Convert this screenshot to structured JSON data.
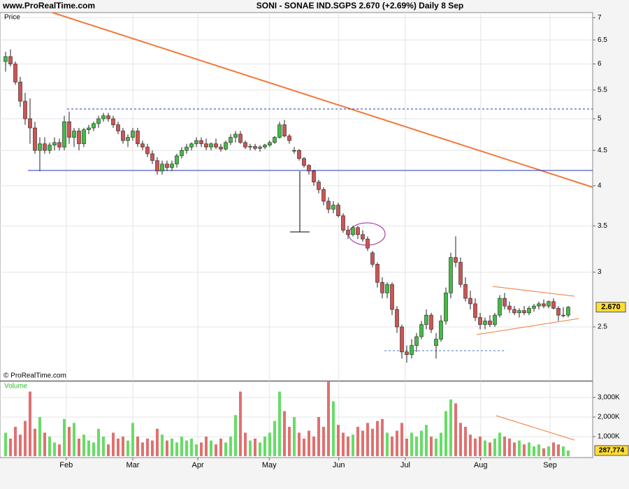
{
  "header": {
    "site": "www.ProRealTime.com",
    "title": "SONI - SONAE IND.SGPS   2.670 (+2.69%)   Daily  8 Sep"
  },
  "chart_data": [
    {
      "type": "candlestick",
      "label": "Price",
      "copyright": "© ProRealTime.com",
      "log_scale": true,
      "grid": true,
      "up_color": "#44bb44",
      "down_color": "#cc5555",
      "last_label": "2.670",
      "xlim": [
        -1.14,
        120
      ],
      "ylim": [
        2.09,
        7.12
      ],
      "yticks": [
        7,
        6.5,
        6,
        5.5,
        5,
        4.5,
        4,
        3.5,
        3,
        2.5
      ],
      "ohlc": [
        [
          6.05,
          6.25,
          5.85,
          6.15
        ],
        [
          6.15,
          6.3,
          5.95,
          6.0
        ],
        [
          6.0,
          6.05,
          5.6,
          5.65
        ],
        [
          5.65,
          5.75,
          5.2,
          5.3
        ],
        [
          5.3,
          5.45,
          4.9,
          5.0
        ],
        [
          5.0,
          5.35,
          4.6,
          4.85
        ],
        [
          4.85,
          4.95,
          4.45,
          4.5
        ],
        [
          4.5,
          4.7,
          4.2,
          4.6
        ],
        [
          4.6,
          4.7,
          4.45,
          4.5
        ],
        [
          4.5,
          4.62,
          4.45,
          4.58
        ],
        [
          4.58,
          4.7,
          4.5,
          4.62
        ],
        [
          4.62,
          4.68,
          4.5,
          4.55
        ],
        [
          4.55,
          5.05,
          4.5,
          4.95
        ],
        [
          4.95,
          5.12,
          4.6,
          4.7
        ],
        [
          4.7,
          4.85,
          4.55,
          4.8
        ],
        [
          4.8,
          4.85,
          4.5,
          4.6
        ],
        [
          4.6,
          4.85,
          4.55,
          4.82
        ],
        [
          4.82,
          4.9,
          4.75,
          4.85
        ],
        [
          4.85,
          4.95,
          4.8,
          4.92
        ],
        [
          4.92,
          5.05,
          4.85,
          5.0
        ],
        [
          5.0,
          5.1,
          4.95,
          5.05
        ],
        [
          5.05,
          5.1,
          4.95,
          5.0
        ],
        [
          5.0,
          5.05,
          4.85,
          4.9
        ],
        [
          4.9,
          4.95,
          4.75,
          4.8
        ],
        [
          4.8,
          4.85,
          4.6,
          4.65
        ],
        [
          4.65,
          4.75,
          4.55,
          4.7
        ],
        [
          4.7,
          4.85,
          4.65,
          4.8
        ],
        [
          4.8,
          4.85,
          4.55,
          4.6
        ],
        [
          4.6,
          4.65,
          4.5,
          4.55
        ],
        [
          4.55,
          4.6,
          4.4,
          4.45
        ],
        [
          4.45,
          4.5,
          4.3,
          4.35
        ],
        [
          4.35,
          4.4,
          4.15,
          4.2
        ],
        [
          4.2,
          4.35,
          4.15,
          4.3
        ],
        [
          4.3,
          4.35,
          4.2,
          4.25
        ],
        [
          4.25,
          4.35,
          4.2,
          4.3
        ],
        [
          4.3,
          4.45,
          4.25,
          4.42
        ],
        [
          4.42,
          4.55,
          4.38,
          4.5
        ],
        [
          4.5,
          4.6,
          4.45,
          4.55
        ],
        [
          4.55,
          4.62,
          4.5,
          4.6
        ],
        [
          4.6,
          4.7,
          4.55,
          4.65
        ],
        [
          4.65,
          4.7,
          4.55,
          4.6
        ],
        [
          4.6,
          4.68,
          4.5,
          4.55
        ],
        [
          4.55,
          4.62,
          4.5,
          4.6
        ],
        [
          4.6,
          4.68,
          4.52,
          4.55
        ],
        [
          4.55,
          4.6,
          4.48,
          4.52
        ],
        [
          4.52,
          4.65,
          4.5,
          4.62
        ],
        [
          4.62,
          4.75,
          4.58,
          4.7
        ],
        [
          4.7,
          4.8,
          4.62,
          4.75
        ],
        [
          4.75,
          4.8,
          4.6,
          4.62
        ],
        [
          4.62,
          4.65,
          4.52,
          4.55
        ],
        [
          4.55,
          4.6,
          4.5,
          4.56
        ],
        [
          4.56,
          4.6,
          4.5,
          4.53
        ],
        [
          4.53,
          4.58,
          4.48,
          4.55
        ],
        [
          4.55,
          4.6,
          4.52,
          4.58
        ],
        [
          4.58,
          4.65,
          4.55,
          4.62
        ],
        [
          4.62,
          4.72,
          4.6,
          4.7
        ],
        [
          4.7,
          4.95,
          4.68,
          4.9
        ],
        [
          4.9,
          4.98,
          4.7,
          4.72
        ],
        [
          4.72,
          4.75,
          4.6,
          4.65
        ],
        [
          4.5,
          4.55,
          4.45,
          4.5
        ],
        [
          4.5,
          4.52,
          4.35,
          4.38
        ],
        [
          4.38,
          4.4,
          4.25,
          4.28
        ],
        [
          4.28,
          4.3,
          4.15,
          4.2
        ],
        [
          4.2,
          4.22,
          4.0,
          4.05
        ],
        [
          4.05,
          4.08,
          3.9,
          3.95
        ],
        [
          3.95,
          3.98,
          3.75,
          3.8
        ],
        [
          3.8,
          3.85,
          3.65,
          3.7
        ],
        [
          3.7,
          3.8,
          3.65,
          3.75
        ],
        [
          3.75,
          3.78,
          3.6,
          3.62
        ],
        [
          3.62,
          3.65,
          3.42,
          3.45
        ],
        [
          3.45,
          3.5,
          3.35,
          3.4
        ],
        [
          3.4,
          3.5,
          3.38,
          3.48
        ],
        [
          3.48,
          3.5,
          3.35,
          3.4
        ],
        [
          3.4,
          3.45,
          3.32,
          3.35
        ],
        [
          3.35,
          3.38,
          3.22,
          3.25
        ],
        [
          3.2,
          3.22,
          3.05,
          3.08
        ],
        [
          3.08,
          3.1,
          2.85,
          2.9
        ],
        [
          2.9,
          2.95,
          2.75,
          2.8
        ],
        [
          2.8,
          2.9,
          2.75,
          2.88
        ],
        [
          2.88,
          2.9,
          2.6,
          2.65
        ],
        [
          2.65,
          2.68,
          2.45,
          2.5
        ],
        [
          2.5,
          2.52,
          2.25,
          2.3
        ],
        [
          2.3,
          2.35,
          2.22,
          2.28
        ],
        [
          2.28,
          2.4,
          2.25,
          2.35
        ],
        [
          2.35,
          2.45,
          2.3,
          2.42
        ],
        [
          2.42,
          2.55,
          2.4,
          2.52
        ],
        [
          2.52,
          2.65,
          2.48,
          2.6
        ],
        [
          2.6,
          2.62,
          2.45,
          2.48
        ],
        [
          2.35,
          2.45,
          2.25,
          2.4
        ],
        [
          2.4,
          2.6,
          2.38,
          2.55
        ],
        [
          2.55,
          2.85,
          2.52,
          2.8
        ],
        [
          2.8,
          3.2,
          2.75,
          3.15
        ],
        [
          3.15,
          3.38,
          3.05,
          3.1
        ],
        [
          3.1,
          3.15,
          2.85,
          2.88
        ],
        [
          2.88,
          2.95,
          2.72,
          2.75
        ],
        [
          2.75,
          2.82,
          2.65,
          2.7
        ],
        [
          2.7,
          2.75,
          2.55,
          2.58
        ],
        [
          2.58,
          2.62,
          2.48,
          2.52
        ],
        [
          2.52,
          2.58,
          2.48,
          2.55
        ],
        [
          2.55,
          2.6,
          2.5,
          2.52
        ],
        [
          2.52,
          2.62,
          2.5,
          2.6
        ],
        [
          2.6,
          2.78,
          2.58,
          2.75
        ],
        [
          2.75,
          2.8,
          2.65,
          2.68
        ],
        [
          2.68,
          2.72,
          2.62,
          2.65
        ],
        [
          2.65,
          2.68,
          2.6,
          2.62
        ],
        [
          2.62,
          2.66,
          2.58,
          2.64
        ],
        [
          2.64,
          2.68,
          2.6,
          2.62
        ],
        [
          2.62,
          2.68,
          2.6,
          2.66
        ],
        [
          2.66,
          2.7,
          2.63,
          2.68
        ],
        [
          2.68,
          2.72,
          2.65,
          2.7
        ],
        [
          2.7,
          2.74,
          2.66,
          2.68
        ],
        [
          2.68,
          2.73,
          2.66,
          2.72
        ],
        [
          2.72,
          2.75,
          2.65,
          2.66
        ],
        [
          2.66,
          2.68,
          2.55,
          2.6
        ],
        [
          2.6,
          2.67,
          2.58,
          2.6
        ],
        [
          2.6,
          2.68,
          2.58,
          2.67
        ]
      ]
    },
    {
      "type": "bar",
      "label": "Volume",
      "last_label": "287,774",
      "xlim": [
        -1.14,
        120
      ],
      "ylim": [
        0,
        3820000
      ],
      "xticks": [
        {
          "value": 12.4,
          "label": "Feb"
        },
        {
          "value": 26,
          "label": "Mar"
        },
        {
          "value": 39.3,
          "label": "Apr"
        },
        {
          "value": 53.9,
          "label": "May"
        },
        {
          "value": 68.1,
          "label": "Jun"
        },
        {
          "value": 81.7,
          "label": "Jul"
        },
        {
          "value": 97.1,
          "label": "Aug"
        },
        {
          "value": 111.3,
          "label": "Sep"
        }
      ],
      "yticks": [
        {
          "value": 1000000,
          "label": "1,000K"
        },
        {
          "value": 2000000,
          "label": "2,000K"
        },
        {
          "value": 3000000,
          "label": "3,000K"
        }
      ],
      "values": [
        1200000,
        900000,
        1500000,
        1100000,
        1800000,
        3300000,
        1400000,
        2000000,
        1200000,
        1000000,
        700000,
        600000,
        1900000,
        1500000,
        1700000,
        900000,
        1100000,
        800000,
        700000,
        1400000,
        1000000,
        600000,
        1200000,
        900000,
        1000000,
        800000,
        1700000,
        1000000,
        700000,
        900000,
        800000,
        1400000,
        1100000,
        800000,
        900000,
        700000,
        1000000,
        800000,
        900000,
        600000,
        700000,
        1000000,
        800000,
        600000,
        900000,
        700000,
        1000000,
        2100000,
        3300000,
        1200000,
        800000,
        900000,
        700000,
        1000000,
        1200000,
        1800000,
        3300000,
        2300000,
        1500000,
        2000000,
        1200000,
        900000,
        1300000,
        1000000,
        2000000,
        1500000,
        3800000,
        2800000,
        1600000,
        1200000,
        1000000,
        1100000,
        1500000,
        1300000,
        1700000,
        1400000,
        1800000,
        1900000,
        1200000,
        1000000,
        1300000,
        1700000,
        900000,
        1200000,
        1000000,
        1300000,
        1600000,
        1000000,
        900000,
        1200000,
        2300000,
        2900000,
        2700000,
        1700000,
        1500000,
        1100000,
        900000,
        1000000,
        800000,
        700000,
        900000,
        1200000,
        1000000,
        900000,
        700000,
        800000,
        600000,
        700000,
        500000,
        600000,
        400000,
        500000,
        700000,
        600000,
        500000,
        287774
      ]
    }
  ]
}
